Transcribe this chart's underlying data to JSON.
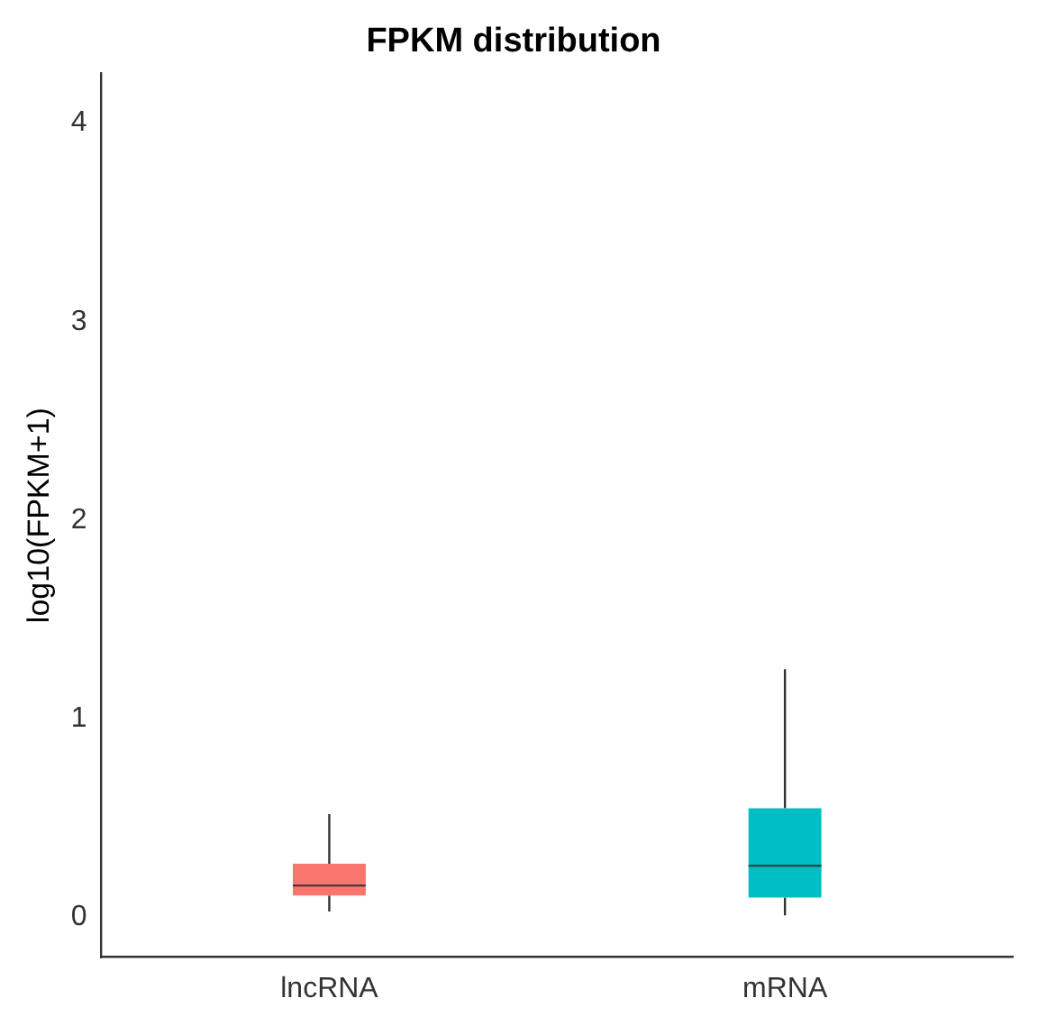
{
  "chart_data": {
    "type": "box",
    "title": "FPKM distribution",
    "ylabel": "log10(FPKM+1)",
    "categories": [
      "lncRNA",
      "mRNA"
    ],
    "colors": [
      "#f8766d",
      "#00bfc4"
    ],
    "boxes": [
      {
        "low": 0.03,
        "q1": 0.11,
        "median": 0.16,
        "q3": 0.27,
        "high": 0.52
      },
      {
        "low": 0.01,
        "q1": 0.1,
        "median": 0.26,
        "q3": 0.55,
        "high": 1.25
      }
    ],
    "ylim": [
      -0.2,
      4.25
    ],
    "yticks": [
      0,
      1,
      2,
      3,
      4
    ],
    "grid": false,
    "legend": false
  }
}
